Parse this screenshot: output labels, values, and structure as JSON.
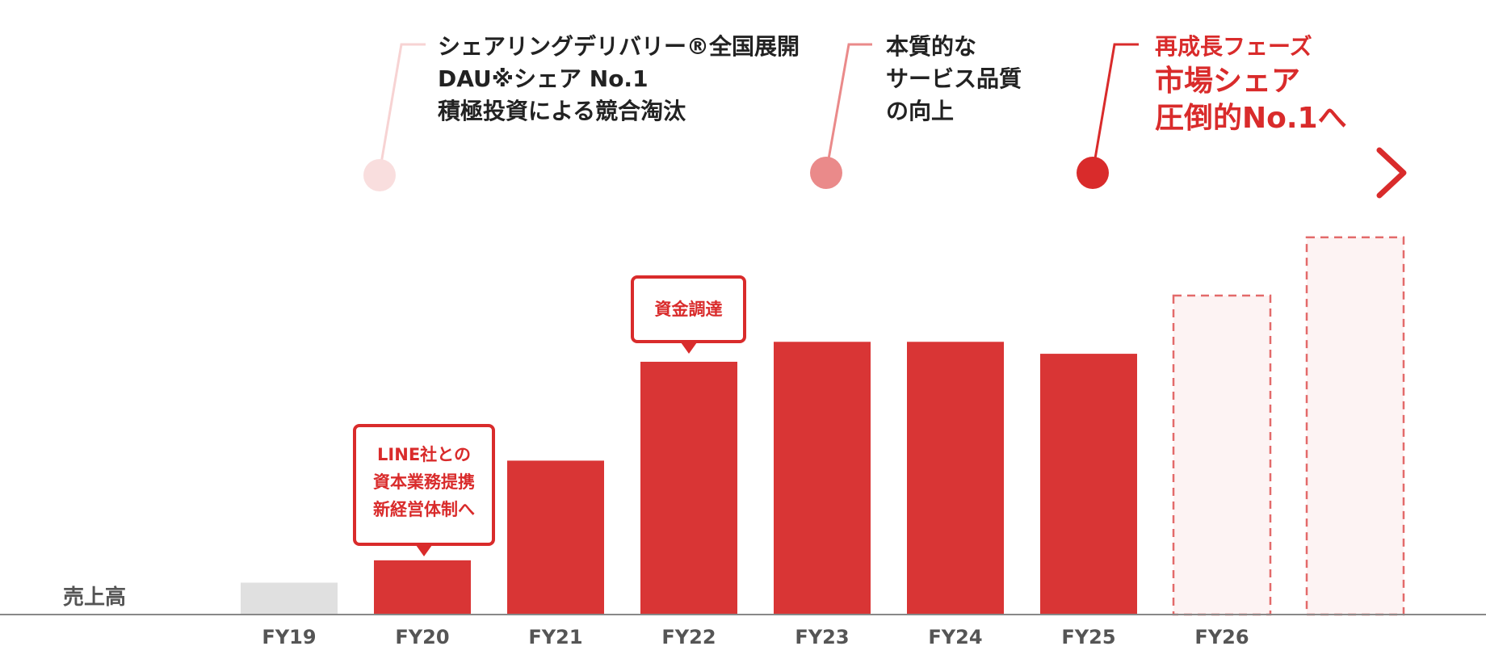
{
  "milestones": [
    {
      "lines": [
        "シェアリングデリバリー®全国展開",
        "DAU※シェア No.1",
        "積極投資による競合淘汰"
      ]
    },
    {
      "lines": [
        "本質的な",
        "サービス品質",
        "の向上"
      ]
    },
    {
      "heading": "再成長フェーズ",
      "lines": [
        "市場シェア",
        "圧倒的No.1へ"
      ]
    }
  ],
  "callouts": [
    {
      "lines": [
        "LINE社との",
        "資本業務提携",
        "新経営体制へ"
      ]
    },
    {
      "lines": [
        "資金調達"
      ]
    }
  ],
  "chart_data": {
    "type": "bar",
    "title": "",
    "xlabel": "",
    "ylabel": "売上高",
    "categories": [
      "FY19",
      "FY20",
      "FY21",
      "FY22",
      "FY23",
      "FY24",
      "FY25",
      "FY26",
      ""
    ],
    "values": [
      40,
      68,
      193,
      317,
      342,
      342,
      327,
      400,
      473
    ],
    "ylim": [
      0,
      480
    ],
    "bar_styles": [
      "past",
      "actual",
      "actual",
      "actual",
      "actual",
      "actual",
      "actual",
      "forecast",
      "forecast"
    ],
    "grid": false,
    "colors": {
      "actual": "#d93535",
      "past": "#e0e0e0",
      "forecast_border": "#e36a6a",
      "forecast_fill": "#fdf3f3",
      "axis": "#888888",
      "text": "#555555"
    }
  }
}
